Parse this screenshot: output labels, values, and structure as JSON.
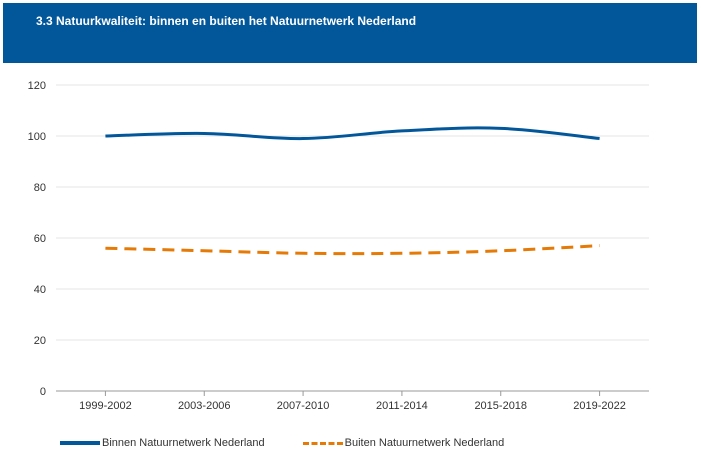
{
  "header": {
    "title": "3.3 Natuurkwaliteit: binnen en buiten het Natuurnetwerk Nederland"
  },
  "colors": {
    "header_bg": "#02579b",
    "series_inside": "#02579b",
    "series_outside": "#e57a07"
  },
  "chart_data": {
    "type": "line",
    "title": "",
    "xlabel": "",
    "ylabel": "",
    "categories": [
      "1999-2002",
      "2003-2006",
      "2007-2010",
      "2011-2014",
      "2015-2018",
      "2019-2022"
    ],
    "ylim": [
      0,
      120
    ],
    "yticks": [
      0,
      20,
      40,
      60,
      80,
      100,
      120
    ],
    "grid": true,
    "legend_position": "bottom-left",
    "series": [
      {
        "name": "Binnen Natuurnetwerk Nederland",
        "values": [
          100,
          101,
          99,
          102,
          103,
          99
        ],
        "style": "solid"
      },
      {
        "name": "Buiten Natuurnetwerk Nederland",
        "values": [
          56,
          55,
          54,
          54,
          55,
          57
        ],
        "style": "dashed"
      }
    ]
  }
}
